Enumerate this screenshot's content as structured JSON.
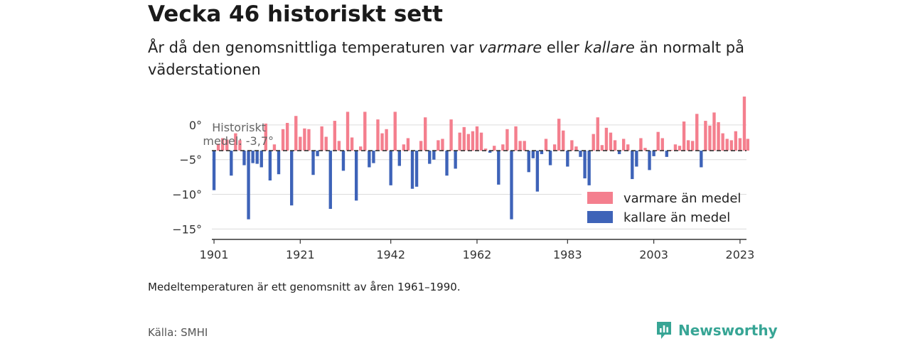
{
  "header": {
    "title": "Vecka 46 historiskt sett",
    "subtitle_pre": "År då den genomsnittliga temperaturen var ",
    "subtitle_warm": "varmare",
    "subtitle_mid": " eller ",
    "subtitle_cold": "kallare",
    "subtitle_post": " än normalt på väderstationen"
  },
  "footer": {
    "note": "Medeltemperaturen är ett genomsnitt av åren 1961–1990.",
    "source": "Källa: SMHI",
    "brand": "Newsworthy"
  },
  "chart_data": {
    "type": "bar",
    "baseline": -3.7,
    "ylim": [
      -16.5,
      4.5
    ],
    "xlim": [
      1900.5,
      2024.5
    ],
    "y_ticks": [
      0,
      -5,
      -10,
      -15
    ],
    "y_tick_labels": [
      "0°",
      "−5°",
      "−10°",
      "−15°"
    ],
    "x_ticks": [
      1901,
      1921,
      1942,
      1962,
      1983,
      2003,
      2023
    ],
    "x_tick_labels": [
      "1901",
      "1921",
      "1942",
      "1962",
      "1983",
      "2003",
      "2023"
    ],
    "annotation": {
      "line1": "Historiskt",
      "line2": "medel: -3,7°"
    },
    "legend": {
      "position": "bottom-right",
      "warm_label": "varmare än medel",
      "cold_label": "kallare än medel"
    },
    "colors": {
      "warm": "#f47f8e",
      "cold": "#3e63b8",
      "baseline": "#333333",
      "grid": "#dcdcdc",
      "axis": "#333333"
    },
    "series": [
      {
        "x": 1901,
        "y": -9.4
      },
      {
        "x": 1902,
        "y": -2.7
      },
      {
        "x": 1903,
        "y": -1.9
      },
      {
        "x": 1904,
        "y": -2.1
      },
      {
        "x": 1905,
        "y": -7.3
      },
      {
        "x": 1906,
        "y": -1.2
      },
      {
        "x": 1907,
        "y": -2.2
      },
      {
        "x": 1908,
        "y": -5.8
      },
      {
        "x": 1909,
        "y": -13.6
      },
      {
        "x": 1910,
        "y": -5.5
      },
      {
        "x": 1911,
        "y": -5.6
      },
      {
        "x": 1912,
        "y": -6.1
      },
      {
        "x": 1913,
        "y": 0.2
      },
      {
        "x": 1914,
        "y": -8.0
      },
      {
        "x": 1915,
        "y": -2.8
      },
      {
        "x": 1916,
        "y": -7.1
      },
      {
        "x": 1917,
        "y": -0.6
      },
      {
        "x": 1918,
        "y": 0.3
      },
      {
        "x": 1919,
        "y": -11.6
      },
      {
        "x": 1920,
        "y": 1.3
      },
      {
        "x": 1921,
        "y": -1.7
      },
      {
        "x": 1922,
        "y": -0.5
      },
      {
        "x": 1923,
        "y": -0.6
      },
      {
        "x": 1924,
        "y": -7.2
      },
      {
        "x": 1925,
        "y": -4.5
      },
      {
        "x": 1926,
        "y": -0.2
      },
      {
        "x": 1927,
        "y": -1.7
      },
      {
        "x": 1928,
        "y": -12.1
      },
      {
        "x": 1929,
        "y": 0.6
      },
      {
        "x": 1930,
        "y": -2.3
      },
      {
        "x": 1931,
        "y": -6.6
      },
      {
        "x": 1932,
        "y": 1.9
      },
      {
        "x": 1933,
        "y": -1.8
      },
      {
        "x": 1934,
        "y": -10.9
      },
      {
        "x": 1935,
        "y": -3.1
      },
      {
        "x": 1936,
        "y": 1.9
      },
      {
        "x": 1937,
        "y": -6.1
      },
      {
        "x": 1938,
        "y": -5.5
      },
      {
        "x": 1939,
        "y": 0.8
      },
      {
        "x": 1940,
        "y": -1.2
      },
      {
        "x": 1941,
        "y": -0.6
      },
      {
        "x": 1942,
        "y": -8.7
      },
      {
        "x": 1943,
        "y": 1.9
      },
      {
        "x": 1944,
        "y": -5.9
      },
      {
        "x": 1945,
        "y": -2.8
      },
      {
        "x": 1946,
        "y": -1.9
      },
      {
        "x": 1947,
        "y": -9.2
      },
      {
        "x": 1948,
        "y": -8.9
      },
      {
        "x": 1949,
        "y": -2.3
      },
      {
        "x": 1950,
        "y": 1.1
      },
      {
        "x": 1951,
        "y": -5.6
      },
      {
        "x": 1952,
        "y": -5.0
      },
      {
        "x": 1953,
        "y": -2.2
      },
      {
        "x": 1954,
        "y": -2.0
      },
      {
        "x": 1955,
        "y": -7.3
      },
      {
        "x": 1956,
        "y": 0.8
      },
      {
        "x": 1957,
        "y": -6.3
      },
      {
        "x": 1958,
        "y": -1.1
      },
      {
        "x": 1959,
        "y": -0.3
      },
      {
        "x": 1960,
        "y": -1.3
      },
      {
        "x": 1961,
        "y": -0.9
      },
      {
        "x": 1962,
        "y": -0.2
      },
      {
        "x": 1963,
        "y": -1.1
      },
      {
        "x": 1964,
        "y": -3.4
      },
      {
        "x": 1965,
        "y": -4.0
      },
      {
        "x": 1966,
        "y": -3.0
      },
      {
        "x": 1967,
        "y": -8.6
      },
      {
        "x": 1968,
        "y": -2.8
      },
      {
        "x": 1969,
        "y": -0.6
      },
      {
        "x": 1970,
        "y": -13.6
      },
      {
        "x": 1971,
        "y": -0.2
      },
      {
        "x": 1972,
        "y": -2.3
      },
      {
        "x": 1973,
        "y": -2.3
      },
      {
        "x": 1974,
        "y": -6.8
      },
      {
        "x": 1975,
        "y": -4.8
      },
      {
        "x": 1976,
        "y": -9.6
      },
      {
        "x": 1977,
        "y": -4.2
      },
      {
        "x": 1978,
        "y": -2.0
      },
      {
        "x": 1979,
        "y": -5.8
      },
      {
        "x": 1980,
        "y": -2.8
      },
      {
        "x": 1981,
        "y": 0.9
      },
      {
        "x": 1982,
        "y": -0.8
      },
      {
        "x": 1983,
        "y": -6.0
      },
      {
        "x": 1984,
        "y": -2.2
      },
      {
        "x": 1985,
        "y": -3.1
      },
      {
        "x": 1986,
        "y": -4.6
      },
      {
        "x": 1987,
        "y": -7.7
      },
      {
        "x": 1988,
        "y": -8.7
      },
      {
        "x": 1989,
        "y": -1.3
      },
      {
        "x": 1990,
        "y": 1.1
      },
      {
        "x": 1991,
        "y": -2.9
      },
      {
        "x": 1992,
        "y": -0.4
      },
      {
        "x": 1993,
        "y": -1.1
      },
      {
        "x": 1994,
        "y": -2.2
      },
      {
        "x": 1995,
        "y": -4.2
      },
      {
        "x": 1996,
        "y": -2.0
      },
      {
        "x": 1997,
        "y": -2.8
      },
      {
        "x": 1998,
        "y": -7.8
      },
      {
        "x": 1999,
        "y": -6.0
      },
      {
        "x": 2000,
        "y": -1.9
      },
      {
        "x": 2001,
        "y": -3.3
      },
      {
        "x": 2002,
        "y": -6.5
      },
      {
        "x": 2003,
        "y": -4.5
      },
      {
        "x": 2004,
        "y": -1.0
      },
      {
        "x": 2005,
        "y": -1.9
      },
      {
        "x": 2006,
        "y": -4.6
      },
      {
        "x": 2007,
        "y": -3.6
      },
      {
        "x": 2008,
        "y": -2.8
      },
      {
        "x": 2009,
        "y": -3.0
      },
      {
        "x": 2010,
        "y": 0.5
      },
      {
        "x": 2011,
        "y": -2.2
      },
      {
        "x": 2012,
        "y": -2.3
      },
      {
        "x": 2013,
        "y": 1.6
      },
      {
        "x": 2014,
        "y": -6.1
      },
      {
        "x": 2015,
        "y": 0.6
      },
      {
        "x": 2016,
        "y": -0.1
      },
      {
        "x": 2017,
        "y": 1.8
      },
      {
        "x": 2018,
        "y": 0.4
      },
      {
        "x": 2019,
        "y": -1.2
      },
      {
        "x": 2020,
        "y": -2.0
      },
      {
        "x": 2021,
        "y": -2.2
      },
      {
        "x": 2022,
        "y": -0.9
      },
      {
        "x": 2023,
        "y": -1.9
      },
      {
        "x": 2024,
        "y": 4.1
      },
      {
        "x": 2024.8,
        "y": -2.0
      }
    ]
  }
}
